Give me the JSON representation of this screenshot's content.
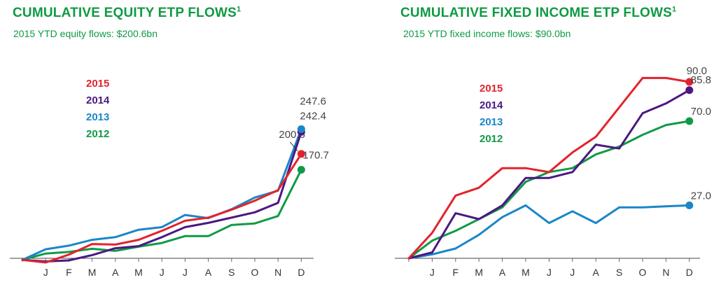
{
  "chart_data": [
    {
      "type": "line",
      "title": "CUMULATIVE EQUITY ETP FLOWS",
      "title_sup": "1",
      "subtitle": "2015 YTD equity flows: $200.6bn",
      "x": [
        "",
        "J",
        "F",
        "M",
        "A",
        "M",
        "J",
        "J",
        "A",
        "S",
        "O",
        "N",
        "D"
      ],
      "ylim": [
        -5,
        280
      ],
      "grid": false,
      "legend_position": "left",
      "series": [
        {
          "name": "2015",
          "color": "#e3232c",
          "values": [
            0,
            -5,
            10,
            30,
            29,
            38,
            55,
            74,
            80,
            95,
            112,
            132,
            200.6
          ],
          "end_label": "200.6"
        },
        {
          "name": "2014",
          "color": "#4b1882",
          "values": [
            0,
            -3,
            -1,
            9,
            22,
            26,
            43,
            62,
            70,
            80,
            90,
            108,
            242.4
          ],
          "end_label": "242.4"
        },
        {
          "name": "2013",
          "color": "#1a86c8",
          "values": [
            0,
            20,
            27,
            38,
            43,
            57,
            62,
            85,
            79,
            96,
            118,
            131,
            247.6
          ],
          "end_label": "247.6"
        },
        {
          "name": "2012",
          "color": "#119a46",
          "values": [
            0,
            12,
            15,
            21,
            17,
            25,
            32,
            45,
            45,
            66,
            69,
            83,
            170.7
          ],
          "end_label": "170.7"
        }
      ]
    },
    {
      "type": "line",
      "title": "CUMULATIVE FIXED INCOME ETP FLOWS",
      "title_sup": "1",
      "subtitle": "2015 YTD fixed income flows: $90.0bn",
      "x": [
        "",
        "J",
        "F",
        "M",
        "A",
        "M",
        "J",
        "J",
        "A",
        "S",
        "O",
        "N",
        "D"
      ],
      "ylim": [
        0,
        95
      ],
      "grid": false,
      "legend_position": "left",
      "series": [
        {
          "name": "2015",
          "color": "#e3232c",
          "values": [
            0,
            13,
            32,
            36,
            46,
            46,
            44,
            54,
            62,
            77,
            92,
            92,
            90.0
          ],
          "end_label": "90.0"
        },
        {
          "name": "2014",
          "color": "#4b1882",
          "values": [
            0,
            3,
            23,
            20,
            27,
            41,
            41,
            44,
            58,
            56,
            74,
            79,
            85.8
          ],
          "end_label": "85.8"
        },
        {
          "name": "2013",
          "color": "#1a86c8",
          "values": [
            0,
            2,
            5,
            12,
            21,
            27,
            18,
            24,
            18,
            26,
            26,
            26.5,
            27.0
          ],
          "end_label": "27.0"
        },
        {
          "name": "2012",
          "color": "#119a46",
          "values": [
            0,
            9,
            14,
            20,
            26,
            39,
            44,
            46,
            53,
            57,
            63,
            68,
            70.0
          ],
          "end_label": "70.0"
        }
      ]
    }
  ]
}
